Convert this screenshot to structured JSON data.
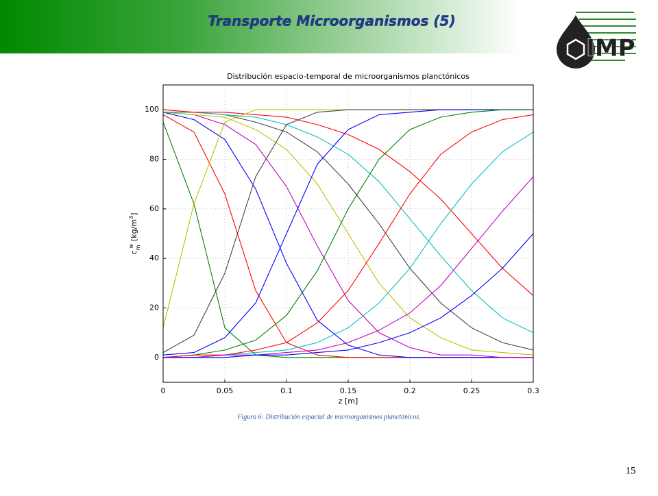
{
  "header": {
    "title": "Transporte Microorganismos (5)",
    "logo": "IMP"
  },
  "chart_data": {
    "type": "line",
    "title": "Distribución espacio-temporal de microorganismos planctónicos",
    "xlabel": "z [m]",
    "ylabel_parts": [
      "c",
      "m",
      "w",
      "[kg/m",
      "3",
      "]"
    ],
    "x": [
      0,
      0.025,
      0.05,
      0.075,
      0.1,
      0.125,
      0.15,
      0.175,
      0.2,
      0.225,
      0.25,
      0.275,
      0.3
    ],
    "xlim": [
      0,
      0.3
    ],
    "ylim": [
      -10,
      110
    ],
    "xticks": [
      0,
      0.05,
      0.1,
      0.15,
      0.2,
      0.25,
      0.3
    ],
    "yticks": [
      0,
      20,
      40,
      60,
      80,
      100
    ],
    "grid": true,
    "series": [
      {
        "color": "#008000",
        "values": [
          95,
          62,
          12,
          1,
          0,
          0,
          0,
          0,
          0,
          0,
          0,
          0,
          0
        ]
      },
      {
        "color": "#ff0000",
        "values": [
          98,
          91,
          66,
          27,
          6,
          1,
          0,
          0,
          0,
          0,
          0,
          0,
          0
        ]
      },
      {
        "color": "#0000ff",
        "values": [
          99,
          96,
          88,
          68,
          38,
          15,
          5,
          1,
          0,
          0,
          0,
          0,
          0
        ]
      },
      {
        "color": "#bf00bf",
        "values": [
          99,
          98,
          94,
          86,
          69,
          45,
          23,
          10,
          4,
          1,
          1,
          0,
          0
        ]
      },
      {
        "color": "#bfbf00",
        "values": [
          99,
          98,
          97,
          92,
          84,
          70,
          50,
          30,
          16,
          8,
          3,
          2,
          1
        ]
      },
      {
        "color": "#404040",
        "values": [
          99,
          99,
          98,
          95,
          91,
          83,
          70,
          54,
          36,
          22,
          12,
          6,
          3
        ]
      },
      {
        "color": "#00bfbf",
        "values": [
          99,
          99,
          98,
          97,
          94,
          89,
          82,
          71,
          56,
          41,
          27,
          16,
          10
        ]
      },
      {
        "color": "#ff0000",
        "values": [
          100,
          99,
          99,
          98,
          97,
          94,
          90,
          84,
          75,
          64,
          50,
          36,
          25
        ]
      },
      {
        "color": "#bfbf00",
        "values": [
          12,
          62,
          95,
          100,
          100,
          100,
          100,
          100,
          100,
          100,
          100,
          100,
          100
        ]
      },
      {
        "color": "#404040",
        "values": [
          2,
          9,
          34,
          73,
          94,
          99,
          100,
          100,
          100,
          100,
          100,
          100,
          100
        ]
      },
      {
        "color": "#0000ff",
        "values": [
          1,
          2,
          8,
          22,
          50,
          78,
          92,
          98,
          99,
          100,
          100,
          100,
          100
        ]
      },
      {
        "color": "#008000",
        "values": [
          0,
          1,
          3,
          7,
          17,
          35,
          60,
          80,
          92,
          97,
          99,
          100,
          100
        ]
      },
      {
        "color": "#ff0000",
        "values": [
          0,
          1,
          1,
          3,
          6,
          14,
          27,
          46,
          66,
          82,
          91,
          96,
          98
        ]
      },
      {
        "color": "#00bfbf",
        "values": [
          0,
          0,
          1,
          2,
          3,
          6,
          12,
          22,
          36,
          54,
          70,
          83,
          91
        ]
      },
      {
        "color": "#bf00bf",
        "values": [
          0,
          0,
          1,
          1,
          2,
          3,
          6,
          11,
          18,
          29,
          44,
          59,
          73
        ]
      },
      {
        "color": "#0000ff",
        "values": [
          0,
          0,
          0,
          1,
          1,
          2,
          3,
          6,
          10,
          16,
          25,
          36,
          50
        ]
      }
    ]
  },
  "caption": "Figura 6: Distribución espacial de microorganismos planctónicos.",
  "page_number": "15"
}
